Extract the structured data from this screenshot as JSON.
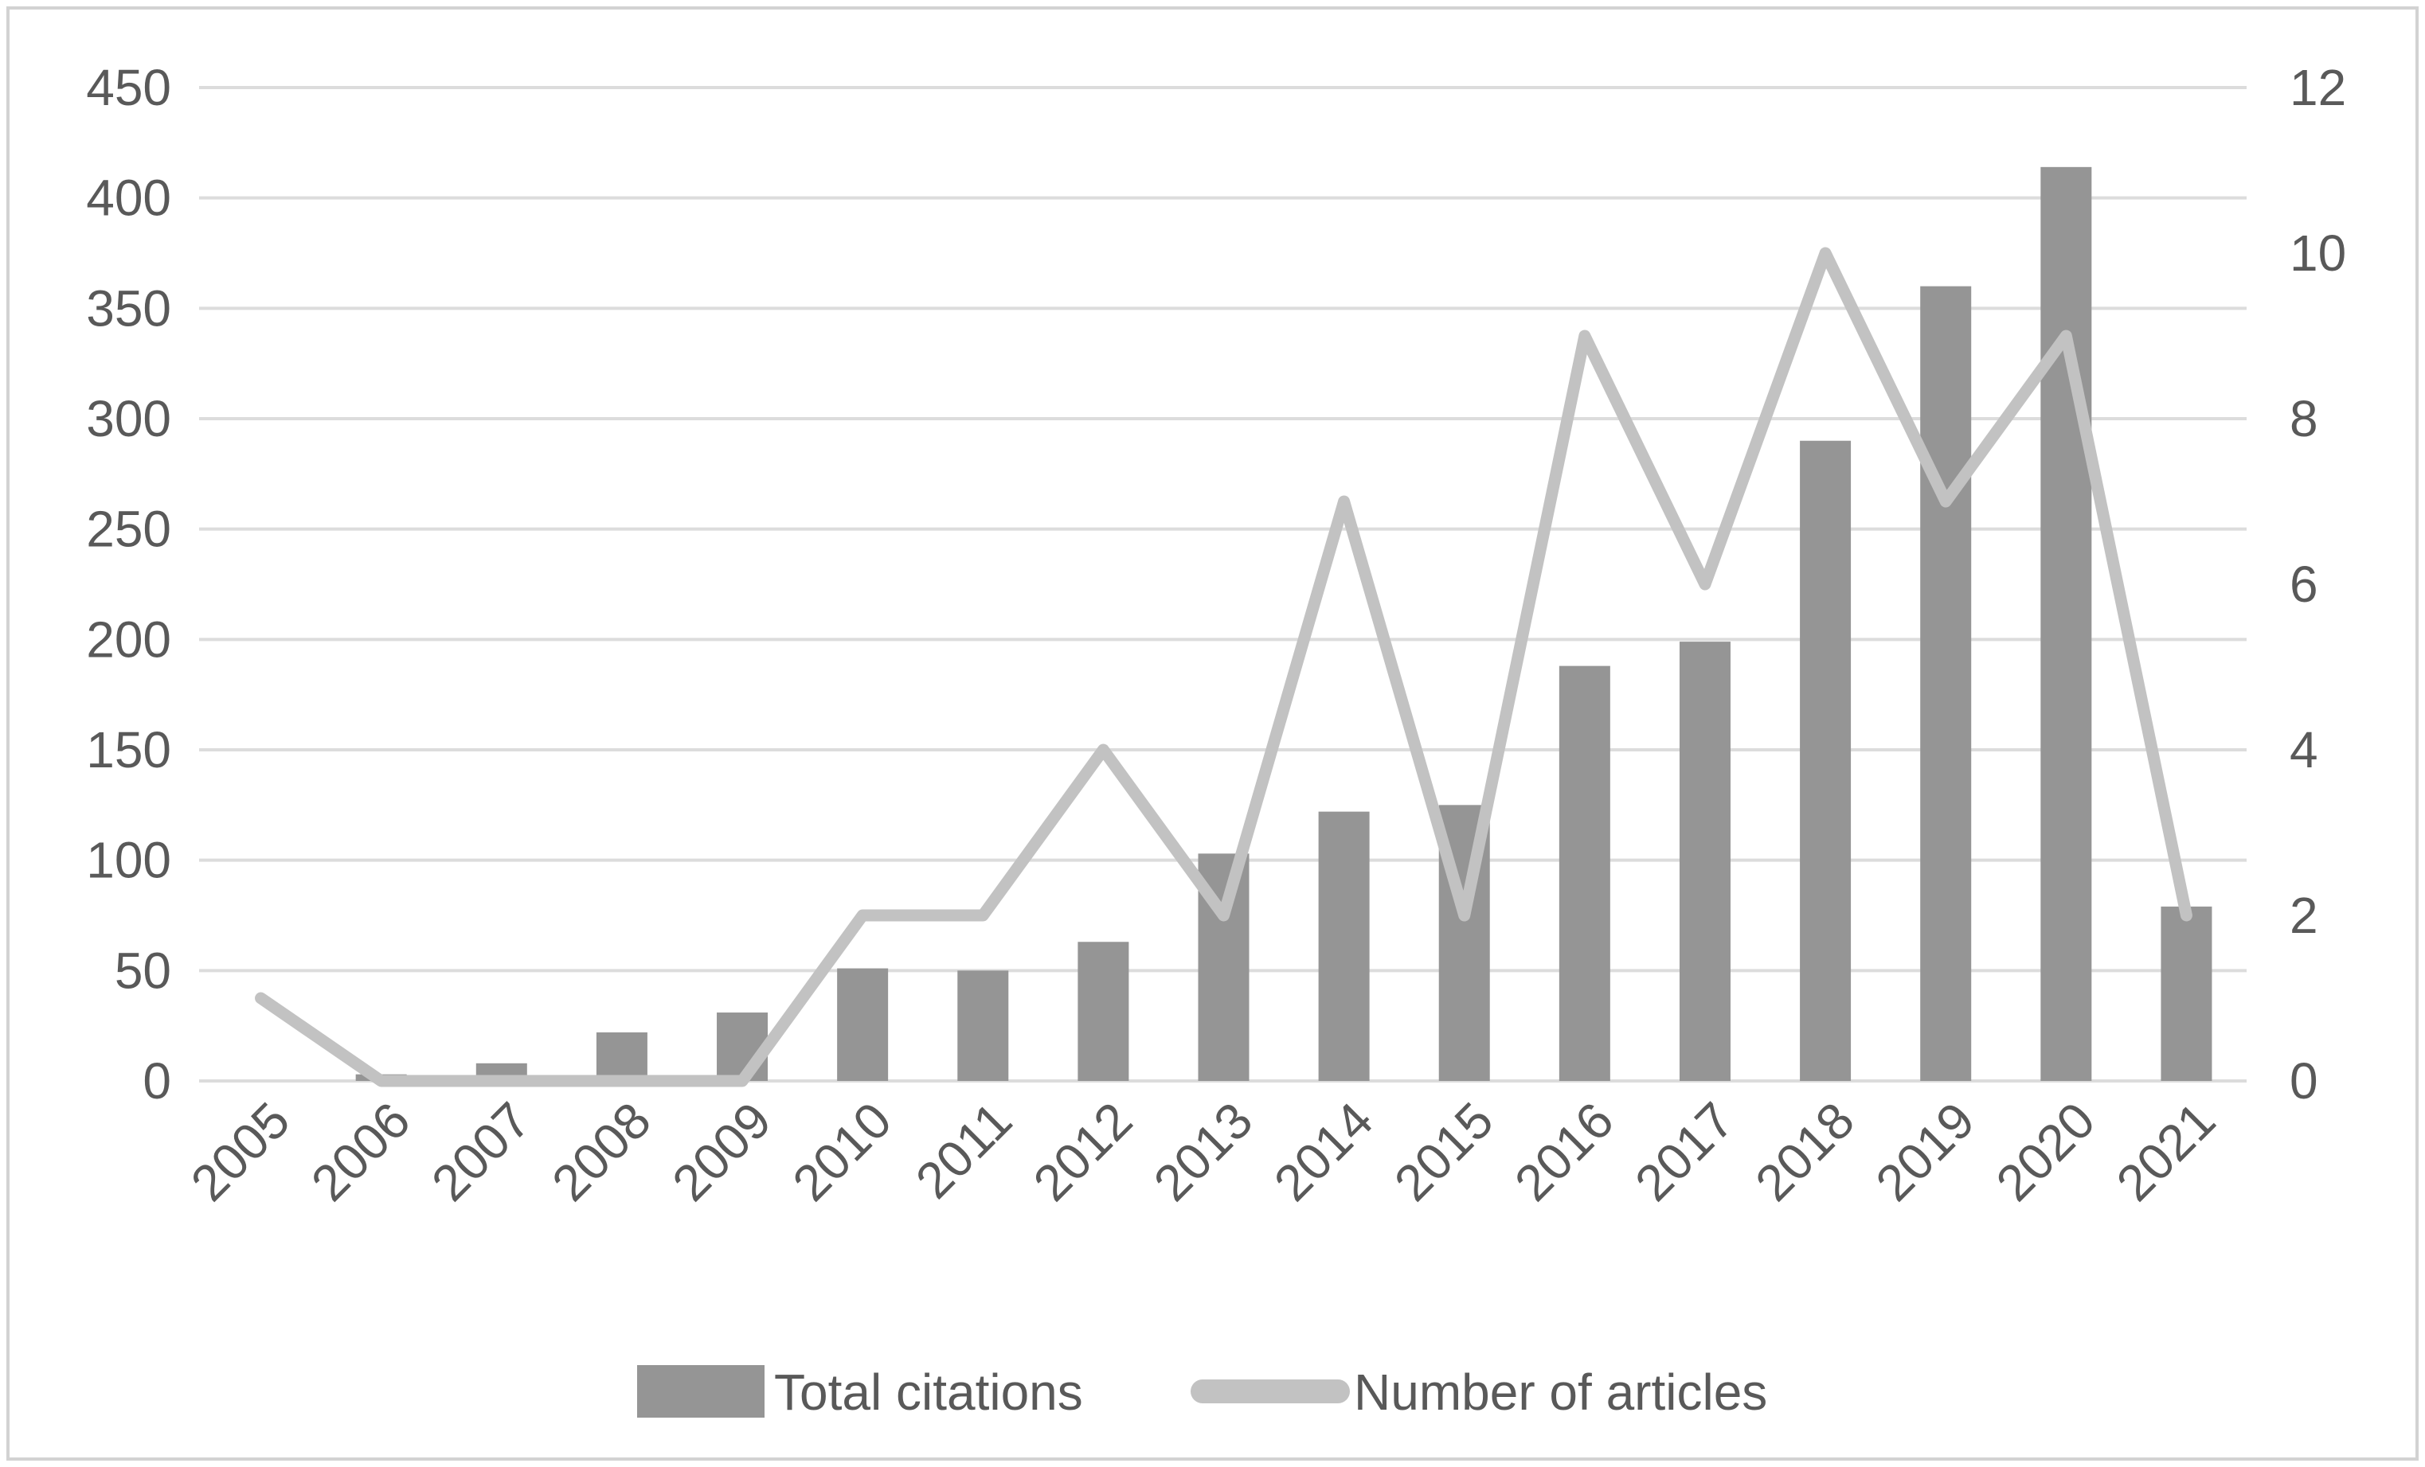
{
  "chart_data": {
    "type": "combo",
    "title": "",
    "categories": [
      "2005",
      "2006",
      "2007",
      "2008",
      "2009",
      "2010",
      "2011",
      "2012",
      "2013",
      "2014",
      "2015",
      "2016",
      "2017",
      "2018",
      "2019",
      "2020",
      "2021"
    ],
    "series": [
      {
        "name": "Total citations",
        "chart_type": "bar",
        "axis": "left",
        "color": "#959595",
        "values": [
          0,
          3,
          8,
          22,
          31,
          51,
          50,
          63,
          103,
          122,
          125,
          188,
          199,
          290,
          360,
          414,
          79
        ]
      },
      {
        "name": "Number of articles",
        "chart_type": "line",
        "axis": "right",
        "color": "#c2c2c2",
        "values": [
          1,
          0,
          0,
          0,
          0,
          2,
          2,
          4,
          2,
          7,
          2,
          9,
          6,
          10,
          7,
          9,
          2
        ]
      }
    ],
    "left_axis": {
      "min": 0,
      "max": 450,
      "step": 50,
      "tick_labels": [
        "0",
        "50",
        "100",
        "150",
        "200",
        "250",
        "300",
        "350",
        "400",
        "450"
      ]
    },
    "right_axis": {
      "min": 0,
      "max": 12,
      "step": 2,
      "tick_labels": [
        "0",
        "2",
        "4",
        "6",
        "8",
        "10",
        "12"
      ]
    },
    "grid": "horizontal",
    "legend_position": "bottom",
    "legend": [
      {
        "swatch": "bar-swatch",
        "label": "Total citations"
      },
      {
        "swatch": "line-swatch",
        "label": "Number of articles"
      }
    ],
    "colors": {
      "bar": "#959595",
      "line": "#c2c2c2",
      "gridline": "#dcdcdc",
      "axis_text": "#595959",
      "border": "#d2d2d2",
      "background": "#ffffff"
    }
  }
}
